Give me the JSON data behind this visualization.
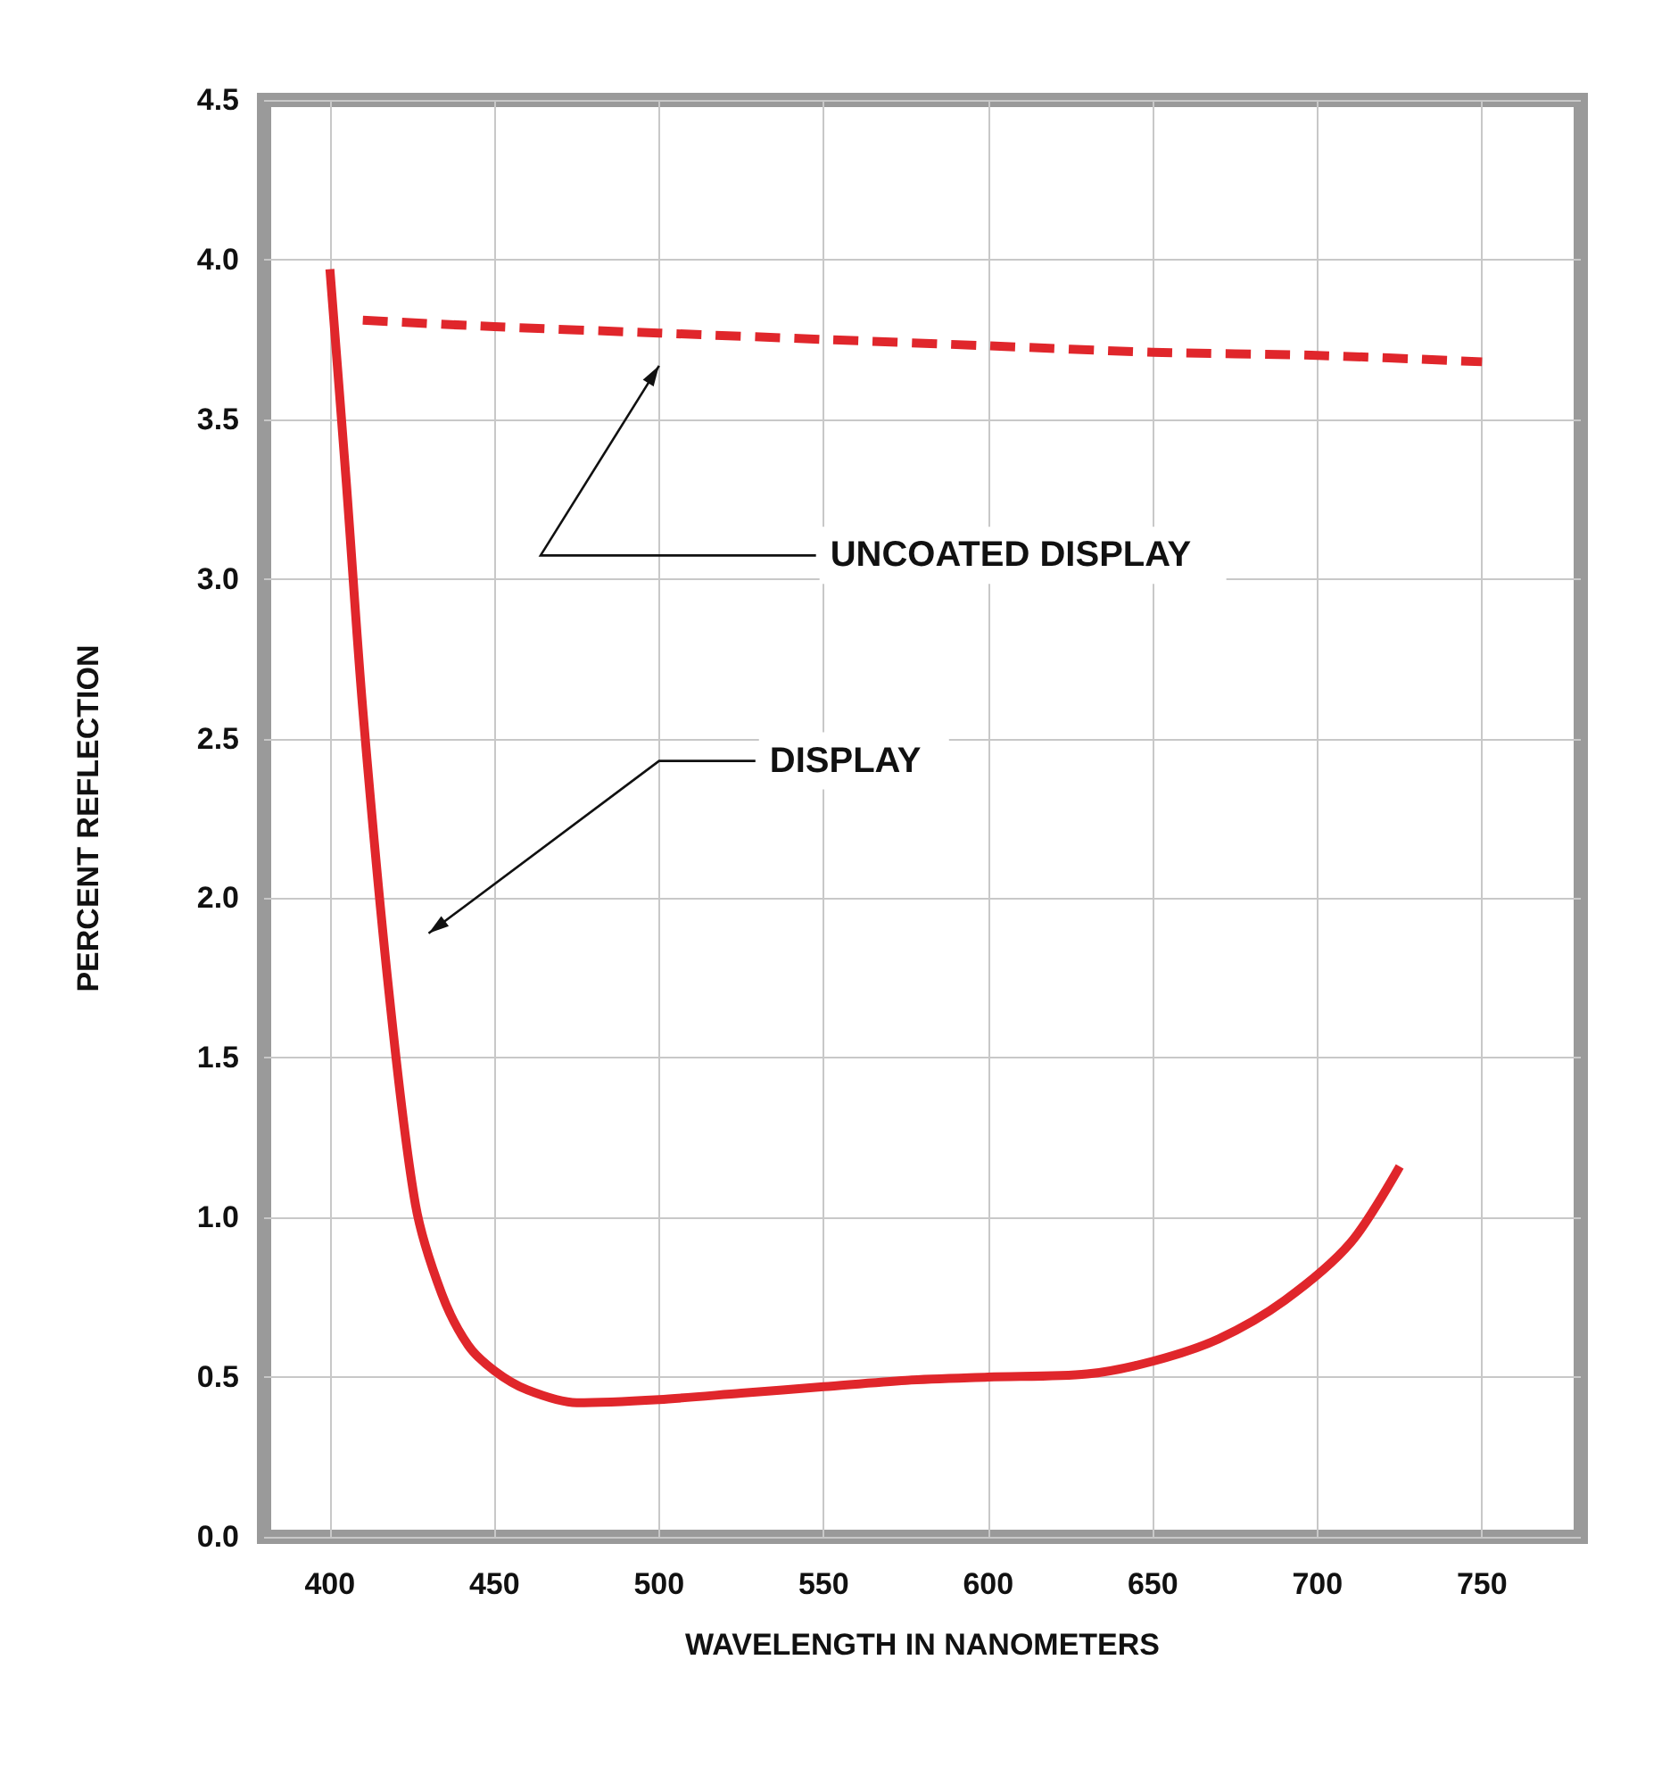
{
  "chart_data": {
    "type": "line",
    "xlabel": "WAVELENGTH IN NANOMETERS",
    "ylabel": "PERCENT REFLECTION",
    "xlim": [
      380,
      780
    ],
    "xticks": [
      400,
      450,
      500,
      550,
      600,
      650,
      700,
      750
    ],
    "ylim": [
      0,
      4.5
    ],
    "yticks": [
      {
        "value": 0,
        "label": "0.0"
      },
      {
        "value": 0.5,
        "label": "0.5"
      },
      {
        "value": 1,
        "label": "1.0"
      },
      {
        "value": 1.5,
        "label": "1.5"
      },
      {
        "value": 2,
        "label": "2.0"
      },
      {
        "value": 2.5,
        "label": "2.5"
      },
      {
        "value": 3,
        "label": "3.0"
      },
      {
        "value": 3.5,
        "label": "3.5"
      },
      {
        "value": 4,
        "label": "4.0"
      },
      {
        "value": 4.5,
        "label": "4.5"
      }
    ],
    "grid": true,
    "marker": "none",
    "series": [
      {
        "color": "#e0262b",
        "line_style": "dashed",
        "x": [
          410,
          450,
          500,
          550,
          600,
          650,
          700,
          750
        ],
        "values": [
          3.81,
          3.79,
          3.77,
          3.75,
          3.73,
          3.71,
          3.7,
          3.68
        ]
      },
      {
        "color": "#e0262b",
        "line_style": "solid",
        "x": [
          400,
          405,
          410,
          418,
          426,
          434,
          442,
          450,
          460,
          475,
          500,
          525,
          550,
          575,
          600,
          630,
          650,
          670,
          690,
          710,
          725
        ],
        "values": [
          3.97,
          3.3,
          2.59,
          1.7,
          1.04,
          0.76,
          0.6,
          0.52,
          0.46,
          0.42,
          0.43,
          0.45,
          0.47,
          0.49,
          0.5,
          0.51,
          0.55,
          0.62,
          0.74,
          0.92,
          1.16
        ]
      }
    ],
    "annotations": [
      "UNCOATED DISPLAY",
      "DISPLAY"
    ]
  }
}
